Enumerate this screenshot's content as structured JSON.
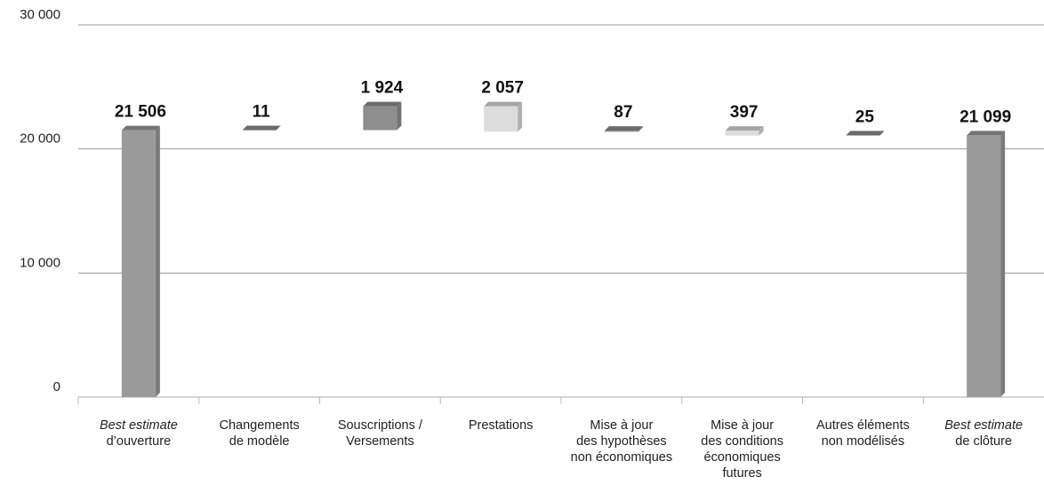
{
  "chart_data": {
    "type": "waterfall",
    "categories": [
      [
        "Best estimate",
        "d’ouverture"
      ],
      [
        "Changements",
        "de modèle"
      ],
      [
        "Souscriptions /",
        "Versements"
      ],
      [
        "Prestations"
      ],
      [
        "Mise à jour",
        "des hypothèses",
        "non économiques"
      ],
      [
        "Mise à jour",
        "des conditions",
        "économiques",
        "futures"
      ],
      [
        "Autres éléments",
        "non modélisés"
      ],
      [
        "Best estimate",
        "de clôture"
      ]
    ],
    "values": [
      21506,
      11,
      1924,
      -2057,
      87,
      -397,
      25,
      21099
    ],
    "value_labels": [
      "21 506",
      "11",
      "1 924",
      "2 057",
      "87",
      "397",
      "25",
      "21 099"
    ],
    "total_color": "#9a9a9a",
    "increase_color": "#8e8e8e",
    "decrease_color": "#dcdcdc",
    "ylim": [
      0,
      30000
    ],
    "yticks": [
      0,
      {
        "value": 10000,
        "label": "10 000"
      },
      {
        "value": 20000,
        "label": "20 000"
      },
      {
        "value": 30000,
        "label": "30 000"
      }
    ],
    "grid": true
  }
}
